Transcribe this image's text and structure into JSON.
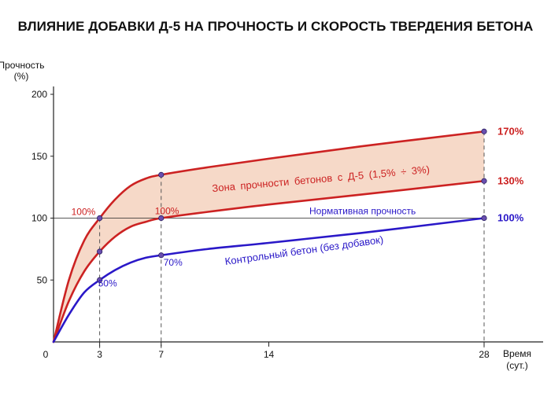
{
  "chart_data": {
    "type": "line",
    "title": "ВЛИЯНИЕ ДОБАВКИ Д-5 НА ПРОЧНОСТЬ И СКОРОСТЬ ТВЕРДЕНИЯ БЕТОНА",
    "ylabel": [
      "Прочность",
      "(%)"
    ],
    "xlabel": [
      "Время",
      "(сут.)"
    ],
    "xlim": [
      0,
      28
    ],
    "ylim": [
      0,
      200
    ],
    "x_ticks": [
      0,
      3,
      7,
      14,
      28
    ],
    "y_ticks": [
      50,
      100,
      150,
      200
    ],
    "grid": false,
    "reference_line": {
      "value": 100,
      "label": "Нормативная прочность"
    },
    "zone": {
      "label": "Зона прочности бетонов с Д-5 (1,5% ÷ 3%)",
      "fill": "#f6d9c8"
    },
    "series": [
      {
        "key": "upper",
        "color": "#cc2222",
        "x": [
          0,
          1,
          2,
          3,
          4,
          5,
          6,
          7,
          10,
          14,
          20,
          28
        ],
        "values": [
          0,
          50,
          82,
          100,
          115,
          126,
          132,
          135,
          141,
          148,
          158,
          170
        ],
        "end_label": "170%"
      },
      {
        "key": "lower",
        "color": "#cc2222",
        "x": [
          0,
          1,
          2,
          3,
          4,
          5,
          6,
          7,
          10,
          14,
          20,
          28
        ],
        "values": [
          0,
          33,
          57,
          73,
          85,
          93,
          97,
          100,
          105,
          111,
          119,
          130
        ],
        "end_label": "130%"
      },
      {
        "key": "control",
        "name": "Контрольный бетон (без добавок)",
        "color": "#2a18c8",
        "x": [
          0,
          1,
          2,
          3,
          4,
          5,
          6,
          7,
          10,
          14,
          20,
          28
        ],
        "values": [
          0,
          22,
          40,
          50,
          58,
          64,
          68,
          70,
          75,
          80,
          88,
          100
        ],
        "end_label": "100%"
      }
    ],
    "markers": [
      {
        "x": 3,
        "y": 100,
        "series": "upper"
      },
      {
        "x": 7,
        "y": 135,
        "series": "upper"
      },
      {
        "x": 28,
        "y": 170,
        "series": "upper"
      },
      {
        "x": 3,
        "y": 73,
        "series": "lower"
      },
      {
        "x": 7,
        "y": 100,
        "series": "lower"
      },
      {
        "x": 28,
        "y": 130,
        "series": "lower"
      },
      {
        "x": 3,
        "y": 50,
        "series": "control"
      },
      {
        "x": 7,
        "y": 70,
        "series": "control"
      },
      {
        "x": 28,
        "y": 100,
        "series": "control"
      }
    ],
    "point_labels": [
      {
        "text": "100%",
        "x": 3,
        "y": 100,
        "color": "#cc2222"
      },
      {
        "text": "100%",
        "x": 7,
        "y": 100,
        "color": "#cc2222"
      },
      {
        "text": "50%",
        "x": 3,
        "y": 50,
        "color": "#2a18c8"
      },
      {
        "text": "70%",
        "x": 7,
        "y": 70,
        "color": "#2a18c8"
      }
    ],
    "drop_lines": [
      {
        "x": 3,
        "y": 100
      },
      {
        "x": 7,
        "y": 135
      },
      {
        "x": 28,
        "y": 170
      }
    ]
  }
}
